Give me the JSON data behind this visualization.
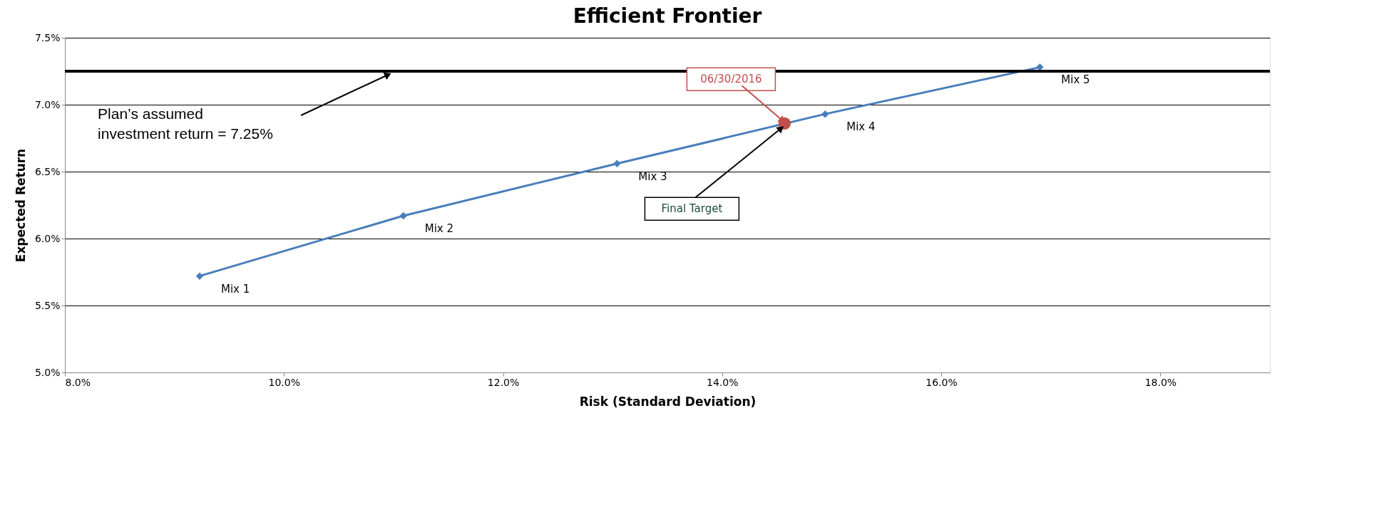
{
  "chart_data": {
    "type": "line",
    "title": "Efficient Frontier",
    "xlabel": "Risk (Standard Deviation)",
    "ylabel": "Expected Return",
    "series": [
      {
        "color": "#4a7ebb",
        "marker": "diamond",
        "x": [
          9.23,
          11.09,
          13.04,
          14.94,
          16.9
        ],
        "values": [
          5.72,
          6.17,
          6.56,
          6.93,
          7.28
        ]
      },
      {
        "type": "scatter",
        "color": "#c0504d",
        "marker": "circle",
        "x": [
          14.57
        ],
        "values": [
          6.86
        ]
      }
    ],
    "xlim": [
      8,
      19
    ],
    "ylim": [
      5,
      7.5
    ],
    "xticks": [
      {
        "value": 8,
        "label": "8.0%"
      },
      {
        "value": 10,
        "label": "10.0%"
      },
      {
        "value": 12,
        "label": "12.0%"
      },
      {
        "value": 14,
        "label": "14.0%"
      },
      {
        "value": 16,
        "label": "16.0%"
      },
      {
        "value": 18,
        "label": "18.0%"
      }
    ],
    "yticks": [
      {
        "value": 5,
        "label": "5.0%"
      },
      {
        "value": 5.5,
        "label": "5.5%"
      },
      {
        "value": 6,
        "label": "6.0%"
      },
      {
        "value": 6.5,
        "label": "6.5%"
      },
      {
        "value": 7,
        "label": "7.0%"
      },
      {
        "value": 7.5,
        "label": "7.5%"
      }
    ],
    "ref_lines": [
      {
        "axis": "y",
        "value": 7.25,
        "label": "Plan’s assumed\ninvestment return = 7.25%",
        "color": "#000000"
      }
    ],
    "annotations": [
      {
        "text": "Mix 1",
        "x": 9.23,
        "y": 5.72
      },
      {
        "text": "Mix 2",
        "x": 11.09,
        "y": 6.17
      },
      {
        "text": "Mix 3",
        "x": 13.04,
        "y": 6.56
      },
      {
        "text": "Mix 4",
        "x": 14.94,
        "y": 6.93
      },
      {
        "text": "Mix 5",
        "x": 16.9,
        "y": 7.28
      },
      {
        "text": "06/30/2016",
        "x": 14.57,
        "y": 6.86
      },
      {
        "text": "Final Target",
        "x": 14.57,
        "y": 6.86
      }
    ],
    "grid": "y"
  }
}
